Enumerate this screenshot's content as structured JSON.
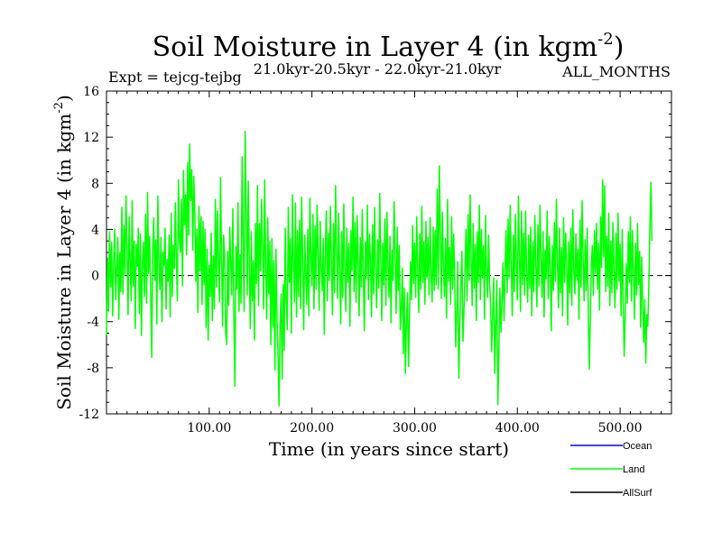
{
  "chart_data": {
    "type": "line",
    "title_main": "Soil Moisture in Layer 4 (in kgm",
    "title_sup": "-2",
    "title_close": ")",
    "expt_label": "Expt = tejcg-tejbg",
    "period_label": "21.0kyr-20.5kyr - 22.0kyr-21.0kyr",
    "months_label": "ALL_MONTHS",
    "xlabel": "Time (in years since start)",
    "ylabel_main": "Soil Moisture in Layer 4 (in kgm",
    "ylabel_sup": "-2",
    "ylabel_close": ")",
    "xlim": [
      0,
      550
    ],
    "ylim": [
      -12,
      16
    ],
    "x_ticks": [
      100,
      200,
      300,
      400,
      500
    ],
    "x_tick_labels": [
      "100.00",
      "200.00",
      "300.00",
      "400.00",
      "500.00"
    ],
    "y_ticks": [
      -12,
      -8,
      -4,
      0,
      4,
      8,
      12,
      16
    ],
    "y_tick_labels": [
      "-12",
      "-8",
      "-4",
      "0",
      "4",
      "8",
      "12",
      "16"
    ],
    "zero_line": 0,
    "legend": [
      {
        "name": "Ocean",
        "color": "#0000ff"
      },
      {
        "name": "Land",
        "color": "#00ff00"
      },
      {
        "name": "AllSurf",
        "color": "#000000"
      }
    ],
    "series": [
      {
        "name": "Land",
        "color": "#00ff00",
        "x_start": 0,
        "x_step": 1,
        "values": [
          -5.2,
          1.5,
          -3.1,
          3.8,
          -1.0,
          2.9,
          -3.5,
          1.2,
          4.0,
          -2.1,
          0.6,
          3.3,
          -3.8,
          2.0,
          -1.4,
          5.9,
          -1.6,
          4.3,
          0.1,
          6.9,
          2.2,
          -3.4,
          5.1,
          1.3,
          -2.2,
          6.5,
          -0.9,
          3.0,
          -4.6,
          2.7,
          0.8,
          4.1,
          -3.3,
          3.6,
          -5.2,
          1.0,
          2.9,
          -1.8,
          5.3,
          -2.4,
          7.2,
          0.2,
          3.4,
          -1.5,
          -7.1,
          2.3,
          5.0,
          -0.4,
          3.1,
          -4.2,
          6.9,
          1.1,
          -1.2,
          3.3,
          -4.0,
          2.0,
          0.9,
          4.1,
          -2.9,
          1.4,
          -0.5,
          3.5,
          -3.6,
          5.4,
          -1.8,
          2.6,
          0.6,
          6.3,
          1.4,
          -2.2,
          8.3,
          3.2,
          2.0,
          6.6,
          -0.9,
          9.1,
          4.4,
          7.0,
          1.8,
          9.8,
          3.5,
          11.4,
          6.5,
          9.2,
          2.2,
          8.6,
          5.4,
          -0.5,
          4.0,
          -3.2,
          6.0,
          0.4,
          5.1,
          -2.5,
          4.7,
          -0.8,
          4.0,
          -4.5,
          2.3,
          -5.6,
          0.9,
          -1.8,
          3.7,
          -3.9,
          1.7,
          -2.9,
          6.6,
          -1.0,
          5.6,
          1.1,
          -2.3,
          8.5,
          2.0,
          -4.4,
          3.5,
          1.7,
          -4.9,
          -6.0,
          2.1,
          -2.6,
          4.2,
          1.2,
          -1.7,
          5.8,
          -3.5,
          -9.6,
          2.5,
          -1.2,
          6.3,
          -3.1,
          1.8,
          -2.4,
          10.3,
          2.8,
          -3.1,
          12.5,
          5.8,
          -1.7,
          8.2,
          0.9,
          -4.6,
          3.8,
          -2.2,
          1.3,
          -5.6,
          4.5,
          -0.7,
          7.8,
          -2.6,
          4.5,
          0.4,
          6.6,
          2.3,
          -2.9,
          8.3,
          0.6,
          -3.8,
          5.0,
          -1.6,
          2.9,
          -6.0,
          3.2,
          -4.5,
          1.3,
          -8.2,
          2.3,
          -3.7,
          -7.0,
          -11.3,
          -4.1,
          -1.6,
          -9.0,
          -0.8,
          -6.5,
          4.1,
          -2.3,
          -4.7,
          5.9,
          -0.6,
          3.2,
          -5.0,
          7.0,
          1.0,
          -2.3,
          6.3,
          -3.6,
          3.9,
          -1.8,
          4.8,
          -2.9,
          6.8,
          1.3,
          -4.7,
          3.5,
          0.2,
          -2.5,
          4.0,
          -3.5,
          6.7,
          1.6,
          -0.9,
          5.3,
          -2.9,
          4.3,
          -1.2,
          6.1,
          2.0,
          -3.0,
          4.7,
          0.8,
          -1.3,
          3.2,
          -5.1,
          2.1,
          5.6,
          -2.2,
          3.7,
          -0.4,
          6.0,
          1.2,
          -3.4,
          4.5,
          -1.5,
          7.8,
          2.4,
          -2.0,
          5.4,
          0.3,
          -4.2,
          3.8,
          -1.9,
          6.2,
          0.7,
          -3.1,
          4.1,
          -0.6,
          2.8,
          -4.4,
          3.9,
          0.5,
          6.8,
          -1.4,
          4.6,
          -2.3,
          5.2,
          1.1,
          -3.5,
          3.3,
          -1.0,
          5.7,
          0.2,
          -4.8,
          2.9,
          -0.3,
          6.1,
          -2.1,
          3.6,
          1.4,
          -3.6,
          4.4,
          -1.6,
          5.9,
          0.6,
          -2.8,
          3.1,
          -1.1,
          7.1,
          1.5,
          -3.9,
          2.8,
          -0.8,
          4.9,
          -2.6,
          5.5,
          0.9,
          -1.9,
          3.4,
          -4.1,
          2.2,
          -0.4,
          6.4,
          1.8,
          -3.3,
          4.2,
          -1.3,
          2.6,
          -4.7,
          -3.2,
          0.6,
          -6.8,
          -1.1,
          -8.5,
          -4.0,
          -1.5,
          -7.9,
          -3.5,
          1.2,
          -2.1,
          4.3,
          -0.7,
          2.8,
          -1.9,
          5.1,
          0.5,
          -3.2,
          3.6,
          -1.2,
          6.0,
          -0.6,
          2.9,
          -2.5,
          4.7,
          -0.2,
          3.3,
          -1.7,
          5.0,
          0.2,
          -2.3,
          4.2,
          -1.3,
          3.9,
          -0.8,
          7.5,
          -1.2,
          9.5,
          3.9,
          -2.0,
          5.5,
          0.8,
          -1.8,
          3.2,
          -3.7,
          6.6,
          -0.5,
          2.4,
          -2.5,
          5.1,
          -1.2,
          3.6,
          -0.3,
          -6.2,
          -3.5,
          1.2,
          -8.9,
          -4.2,
          -0.8,
          2.1,
          -5.7,
          -3.1,
          0.4,
          4.0,
          -2.2,
          5.3,
          -0.4,
          7.0,
          1.6,
          -2.6,
          4.5,
          -1.1,
          2.7,
          -3.9,
          3.8,
          -0.6,
          6.1,
          -2.1,
          4.0,
          -0.2,
          2.6,
          -3.8,
          5.2,
          0.4,
          -1.9,
          3.5,
          -0.7,
          -2.7,
          -6.6,
          -3.1,
          -0.2,
          -8.5,
          -4.2,
          -0.4,
          -11.2,
          -6.7,
          -1.1,
          -4.9,
          -2.3,
          1.1,
          -3.9,
          0.3,
          3.9,
          -1.5,
          4.9,
          -0.2,
          6.1,
          1.2,
          -3.5,
          3.5,
          -1.4,
          5.3,
          0.7,
          -2.1,
          6.9,
          1.7,
          -3.1,
          5.6,
          -0.8,
          3.7,
          -1.7,
          5.6,
          0.2,
          -2.3,
          3.5,
          -1.1,
          4.2,
          -3.5,
          2.9,
          -1.4,
          5.2,
          0.8,
          -2.7,
          4.4,
          -0.9,
          6.1,
          1.6,
          -1.9,
          3.8,
          -3.6,
          2.2,
          -0.3,
          5.6,
          -2.0,
          3.4,
          0.9,
          -4.8,
          2.6,
          -1.3,
          4.6,
          -0.5,
          6.6,
          1.3,
          -2.8,
          4.1,
          -1.5,
          2.4,
          -3.5,
          5.0,
          -0.6,
          3.7,
          1.2,
          -4.3,
          2.9,
          -1.5,
          4.1,
          -2.6,
          5.7,
          0.5,
          -1.6,
          3.6,
          -0.4,
          2.3,
          -3.8,
          4.8,
          -1.0,
          6.5,
          1.5,
          -2.2,
          3.1,
          -1.3,
          4.1,
          -2.8,
          -8.1,
          -3.9,
          0.9,
          2.6,
          -1.7,
          3.9,
          0.2,
          4.5,
          -1.2,
          2.8,
          -3.0,
          5.1,
          0.7,
          8.3,
          1.6,
          7.8,
          -1.4,
          3.4,
          -0.9,
          5.4,
          -2.6,
          3.0,
          -1.5,
          4.6,
          0.3,
          -2.8,
          3.7,
          -1.2,
          5.4,
          -0.5,
          2.7,
          -3.5,
          4.0,
          -2.1,
          -7.0,
          -3.3,
          1.0,
          -2.4,
          3.8,
          -0.6,
          5.1,
          -2.2,
          3.9,
          0.1,
          -3.8,
          2.8,
          -1.7,
          4.5,
          -0.8,
          2.1,
          -4.5,
          1.6,
          -2.5,
          -5.8,
          -2.1,
          -7.6,
          -3.4,
          -4.4,
          -0.7,
          4.2,
          8.1,
          3.0
        ]
      }
    ]
  }
}
